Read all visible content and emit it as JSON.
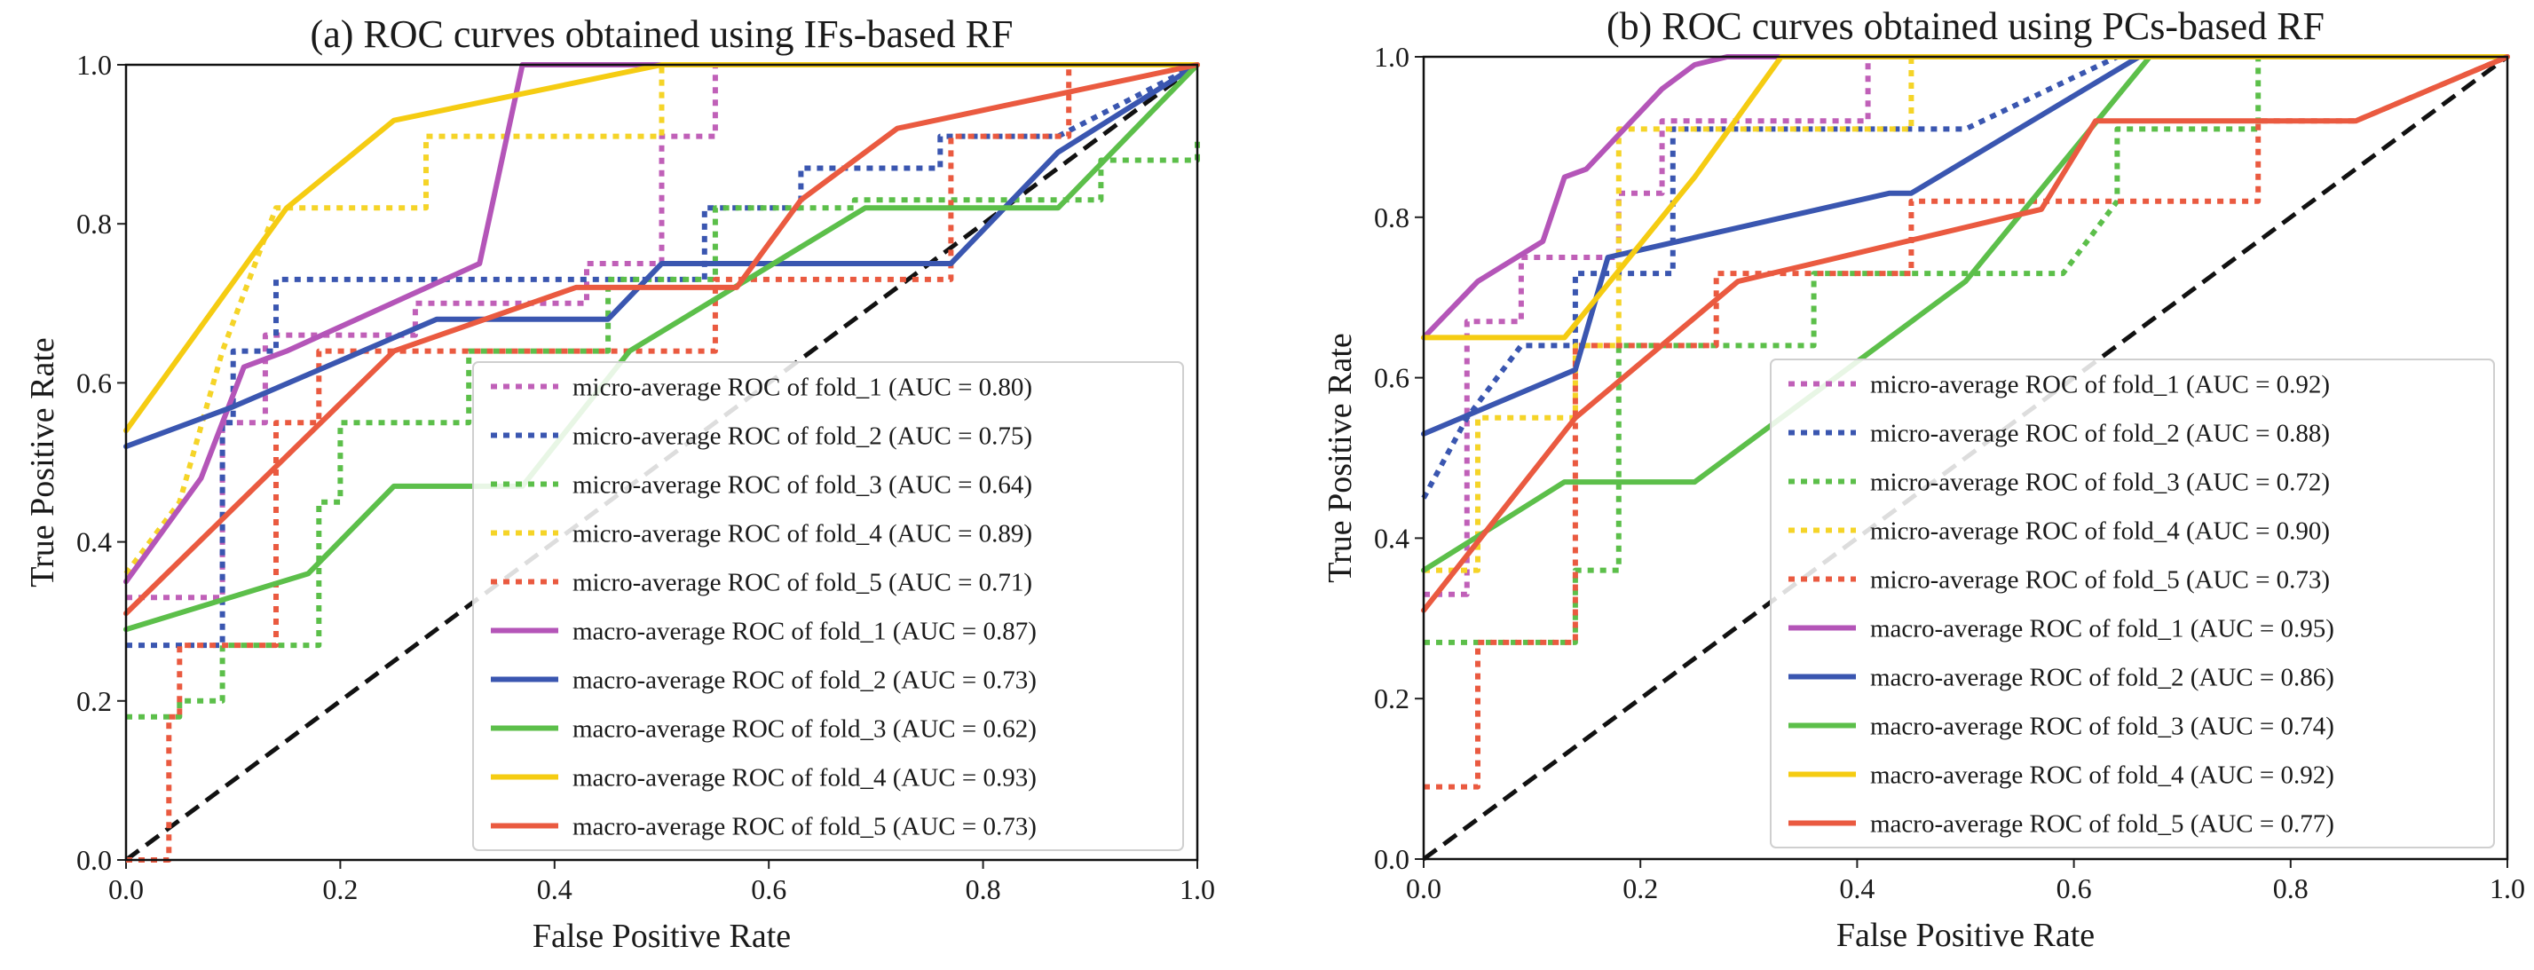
{
  "chart_data": [
    {
      "type": "line",
      "title": "(a) ROC curves obtained using IFs-based RF",
      "xlabel": "False Positive Rate",
      "ylabel": "True Positive Rate",
      "xlim": [
        0,
        1
      ],
      "ylim": [
        0,
        1
      ],
      "xticks": [
        "0.0",
        "0.2",
        "0.4",
        "0.6",
        "0.8",
        "1.0"
      ],
      "yticks": [
        "0.0",
        "0.2",
        "0.4",
        "0.6",
        "0.8",
        "1.0"
      ],
      "legend_position": "lower-right",
      "diagonal": {
        "x": [
          0,
          1
        ],
        "y": [
          0,
          1
        ],
        "color": "#111111"
      },
      "series": [
        {
          "name": "micro-average ROC of fold_1 (AUC = 0.80)",
          "style": "dotted",
          "color": "#c060b8",
          "x": [
            0,
            0.09,
            0.09,
            0.13,
            0.13,
            0.27,
            0.27,
            0.43,
            0.43,
            0.5,
            0.5,
            0.55,
            0.55,
            1.0
          ],
          "y": [
            0.33,
            0.33,
            0.55,
            0.55,
            0.66,
            0.66,
            0.7,
            0.7,
            0.75,
            0.75,
            0.91,
            0.91,
            1.0,
            1.0
          ]
        },
        {
          "name": "micro-average ROC of fold_2 (AUC = 0.75)",
          "style": "dotted",
          "color": "#3a56b0",
          "x": [
            0,
            0.09,
            0.09,
            0.1,
            0.1,
            0.14,
            0.14,
            0.45,
            0.45,
            0.54,
            0.54,
            0.63,
            0.63,
            0.76,
            0.76,
            0.87,
            1.0
          ],
          "y": [
            0.27,
            0.27,
            0.55,
            0.55,
            0.64,
            0.64,
            0.73,
            0.73,
            0.73,
            0.73,
            0.82,
            0.82,
            0.87,
            0.87,
            0.91,
            0.91,
            1.0
          ]
        },
        {
          "name": "micro-average ROC of fold_3 (AUC = 0.64)",
          "style": "dotted",
          "color": "#5cbf4a",
          "x": [
            0,
            0.05,
            0.05,
            0.09,
            0.09,
            0.18,
            0.18,
            0.2,
            0.2,
            0.32,
            0.32,
            0.45,
            0.45,
            0.55,
            0.55,
            0.68,
            0.68,
            0.91,
            0.91,
            1.0,
            1.0
          ],
          "y": [
            0.18,
            0.18,
            0.2,
            0.2,
            0.27,
            0.27,
            0.45,
            0.45,
            0.55,
            0.55,
            0.64,
            0.64,
            0.73,
            0.73,
            0.82,
            0.82,
            0.83,
            0.83,
            0.88,
            0.88,
            0.91
          ]
        },
        {
          "name": "micro-average ROC of fold_4 (AUC = 0.89)",
          "style": "dotted",
          "color": "#f5d428",
          "x": [
            0,
            0.05,
            0.09,
            0.14,
            0.23,
            0.23,
            0.28,
            0.28,
            0.5,
            0.5,
            1.0
          ],
          "y": [
            0.36,
            0.45,
            0.64,
            0.82,
            0.82,
            0.82,
            0.82,
            0.91,
            0.91,
            1.0,
            1.0
          ]
        },
        {
          "name": "micro-average ROC of fold_5 (AUC = 0.71)",
          "style": "dotted",
          "color": "#ea5a40",
          "x": [
            0,
            0.04,
            0.04,
            0.05,
            0.05,
            0.14,
            0.14,
            0.18,
            0.18,
            0.36,
            0.36,
            0.55,
            0.55,
            0.77,
            0.77,
            0.82,
            0.82,
            0.88,
            0.88,
            1.0
          ],
          "y": [
            0.0,
            0.0,
            0.18,
            0.18,
            0.27,
            0.27,
            0.55,
            0.55,
            0.64,
            0.64,
            0.64,
            0.64,
            0.73,
            0.73,
            0.91,
            0.91,
            0.91,
            0.91,
            1.0,
            1.0
          ]
        },
        {
          "name": "macro-average ROC of fold_1 (AUC = 0.87)",
          "style": "solid",
          "color": "#b455b8",
          "x": [
            0,
            0.07,
            0.11,
            0.15,
            0.33,
            0.37,
            0.55,
            1.0
          ],
          "y": [
            0.35,
            0.48,
            0.62,
            0.64,
            0.75,
            1.0,
            1.0,
            1.0
          ]
        },
        {
          "name": "macro-average ROC of fold_2 (AUC = 0.73)",
          "style": "solid",
          "color": "#3a56b0",
          "x": [
            0,
            0.1,
            0.29,
            0.45,
            0.5,
            0.77,
            0.87,
            1.0
          ],
          "y": [
            0.52,
            0.57,
            0.68,
            0.68,
            0.75,
            0.75,
            0.89,
            1.0
          ]
        },
        {
          "name": "macro-average ROC of fold_3 (AUC = 0.62)",
          "style": "solid",
          "color": "#5cbf4a",
          "x": [
            0,
            0.17,
            0.25,
            0.37,
            0.47,
            0.69,
            0.87,
            1.0
          ],
          "y": [
            0.29,
            0.36,
            0.47,
            0.47,
            0.64,
            0.82,
            0.82,
            1.0
          ]
        },
        {
          "name": "macro-average ROC of fold_4 (AUC = 0.93)",
          "style": "solid",
          "color": "#f5cc12",
          "x": [
            0,
            0.15,
            0.25,
            0.5,
            1.0
          ],
          "y": [
            0.54,
            0.82,
            0.93,
            1.0,
            1.0
          ]
        },
        {
          "name": "macro-average ROC of fold_5 (AUC = 0.73)",
          "style": "solid",
          "color": "#ea5a40",
          "x": [
            0,
            0.25,
            0.42,
            0.5,
            0.57,
            0.63,
            0.72,
            1.0
          ],
          "y": [
            0.31,
            0.64,
            0.72,
            0.72,
            0.72,
            0.83,
            0.92,
            1.0
          ]
        }
      ]
    },
    {
      "type": "line",
      "title": "(b) ROC curves obtained using PCs-based RF",
      "xlabel": "False Positive Rate",
      "ylabel": "True Positive Rate",
      "xlim": [
        0,
        1
      ],
      "ylim": [
        0,
        1
      ],
      "xticks": [
        "0.0",
        "0.2",
        "0.4",
        "0.6",
        "0.8",
        "1.0"
      ],
      "yticks": [
        "0.0",
        "0.2",
        "0.4",
        "0.6",
        "0.8",
        "1.0"
      ],
      "legend_position": "lower-right",
      "diagonal": {
        "x": [
          0,
          1
        ],
        "y": [
          0,
          1
        ],
        "color": "#111111"
      },
      "series": [
        {
          "name": "micro-average ROC of fold_1 (AUC = 0.92)",
          "style": "dotted",
          "color": "#c060b8",
          "x": [
            0,
            0.04,
            0.04,
            0.09,
            0.09,
            0.18,
            0.18,
            0.22,
            0.22,
            0.36,
            0.36,
            0.41,
            0.41,
            1.0
          ],
          "y": [
            0.33,
            0.33,
            0.67,
            0.67,
            0.75,
            0.75,
            0.83,
            0.83,
            0.92,
            0.92,
            0.92,
            0.92,
            1.0,
            1.0
          ]
        },
        {
          "name": "micro-average ROC of fold_2 (AUC = 0.88)",
          "style": "dotted",
          "color": "#3a56b0",
          "x": [
            0,
            0.04,
            0.09,
            0.14,
            0.14,
            0.23,
            0.23,
            0.5,
            0.64,
            1.0
          ],
          "y": [
            0.45,
            0.55,
            0.64,
            0.64,
            0.73,
            0.73,
            0.91,
            0.91,
            1.0,
            1.0
          ]
        },
        {
          "name": "micro-average ROC of fold_3 (AUC = 0.72)",
          "style": "dotted",
          "color": "#5cbf4a",
          "x": [
            0,
            0.14,
            0.14,
            0.18,
            0.18,
            0.36,
            0.36,
            0.59,
            0.64,
            0.64,
            0.77,
            0.77,
            1.0
          ],
          "y": [
            0.27,
            0.27,
            0.36,
            0.36,
            0.64,
            0.64,
            0.73,
            0.73,
            0.82,
            0.91,
            0.91,
            1.0,
            1.0
          ]
        },
        {
          "name": "micro-average ROC of fold_4 (AUC = 0.90)",
          "style": "dotted",
          "color": "#f5d428",
          "x": [
            0,
            0.05,
            0.05,
            0.14,
            0.14,
            0.18,
            0.18,
            0.41,
            0.45,
            0.45,
            1.0
          ],
          "y": [
            0.36,
            0.36,
            0.55,
            0.55,
            0.64,
            0.64,
            0.91,
            0.91,
            0.91,
            1.0,
            1.0
          ]
        },
        {
          "name": "micro-average ROC of fold_5 (AUC = 0.73)",
          "style": "dotted",
          "color": "#ea5a40",
          "x": [
            0,
            0.05,
            0.05,
            0.14,
            0.14,
            0.27,
            0.27,
            0.45,
            0.45,
            0.64,
            0.64,
            0.77,
            0.77,
            0.86,
            1.0
          ],
          "y": [
            0.09,
            0.09,
            0.27,
            0.27,
            0.64,
            0.64,
            0.73,
            0.73,
            0.82,
            0.82,
            0.82,
            0.82,
            0.92,
            0.92,
            1.0
          ]
        },
        {
          "name": "macro-average ROC of fold_1 (AUC = 0.95)",
          "style": "solid",
          "color": "#b455b8",
          "x": [
            0,
            0.05,
            0.11,
            0.13,
            0.15,
            0.22,
            0.25,
            0.28,
            1.0
          ],
          "y": [
            0.65,
            0.72,
            0.77,
            0.85,
            0.86,
            0.96,
            0.99,
            1.0,
            1.0
          ]
        },
        {
          "name": "macro-average ROC of fold_2 (AUC = 0.86)",
          "style": "solid",
          "color": "#3a56b0",
          "x": [
            0,
            0.14,
            0.17,
            0.43,
            0.45,
            0.66,
            1.0
          ],
          "y": [
            0.53,
            0.61,
            0.75,
            0.83,
            0.83,
            1.0,
            1.0
          ]
        },
        {
          "name": "macro-average ROC of fold_3 (AUC = 0.74)",
          "style": "solid",
          "color": "#5cbf4a",
          "x": [
            0,
            0.13,
            0.25,
            0.5,
            0.67,
            1.0
          ],
          "y": [
            0.36,
            0.47,
            0.47,
            0.72,
            1.0,
            1.0
          ]
        },
        {
          "name": "macro-average ROC of fold_4 (AUC = 0.92)",
          "style": "solid",
          "color": "#f5cc12",
          "x": [
            0,
            0.13,
            0.25,
            0.33,
            1.0
          ],
          "y": [
            0.65,
            0.65,
            0.85,
            1.0,
            1.0
          ]
        },
        {
          "name": "macro-average ROC of fold_5 (AUC = 0.77)",
          "style": "solid",
          "color": "#ea5a40",
          "x": [
            0,
            0.14,
            0.29,
            0.57,
            0.62,
            0.86,
            1.0
          ],
          "y": [
            0.31,
            0.55,
            0.72,
            0.81,
            0.92,
            0.92,
            1.0
          ]
        }
      ]
    }
  ]
}
